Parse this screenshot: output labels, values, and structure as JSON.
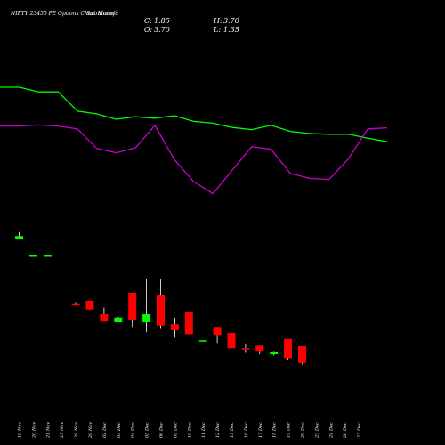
{
  "chart_data": {
    "type": "candlestick",
    "title": "NIFTY 23450 PE Options Chart Munafa",
    "watermark": "Sutra.com",
    "ohlc_summary": {
      "C": "1.85",
      "O": "3.70",
      "H": "3.70",
      "L": "1.35"
    },
    "labels": {
      "C": "C:",
      "O": "O:",
      "H": "H:",
      "L": "L:"
    },
    "colors": {
      "up": "#00ff00",
      "down": "#ff0000",
      "wick": "#ffffff",
      "line_green": "#00ff00",
      "line_magenta": "#cc00cc",
      "background": "#000000"
    },
    "ylim": [
      0,
      28
    ],
    "dates": [
      "19 Nov",
      "20 Nov",
      "21 Nov",
      "27 Nov",
      "28 Nov",
      "29 Nov",
      "02 Dec",
      "03 Dec",
      "04 Dec",
      "05 Dec",
      "06 Dec",
      "09 Dec",
      "10 Dec",
      "11 Dec",
      "12 Dec",
      "13 Dec",
      "16 Dec",
      "17 Dec",
      "18 Dec",
      "19 Dec",
      "20 Dec",
      "23 Dec",
      "24 Dec",
      "26 Dec",
      "27 Dec"
    ],
    "candles": [
      {
        "o": 24.9,
        "h": 25.9,
        "l": 24.9,
        "c": 25.3
      },
      {
        "o": 22.4,
        "h": 22.4,
        "l": 22.4,
        "c": 22.4
      },
      {
        "o": 22.4,
        "h": 22.4,
        "l": 22.4,
        "c": 22.4
      },
      {
        "o": 15.1,
        "h": 15.4,
        "l": 14.9,
        "c": 15.0
      },
      {
        "o": 15.6,
        "h": 15.6,
        "l": 14.3,
        "c": 14.3
      },
      {
        "o": 13.6,
        "h": 14.6,
        "l": 12.5,
        "c": 12.5
      },
      {
        "o": 12.4,
        "h": 13.2,
        "l": 12.4,
        "c": 13.1
      },
      {
        "o": 16.8,
        "h": 16.8,
        "l": 11.7,
        "c": 12.8
      },
      {
        "o": 12.4,
        "h": 18.8,
        "l": 10.9,
        "c": 13.6
      },
      {
        "o": 16.5,
        "h": 18.9,
        "l": 11.4,
        "c": 11.9
      },
      {
        "o": 12.1,
        "h": 13.1,
        "l": 10.1,
        "c": 11.2
      },
      {
        "o": 13.9,
        "h": 13.9,
        "l": 10.6,
        "c": 10.6
      },
      {
        "o": 9.5,
        "h": 9.7,
        "l": 9.5,
        "c": 9.7
      },
      {
        "o": 11.7,
        "h": 11.7,
        "l": 9.3,
        "c": 10.5
      },
      {
        "o": 10.8,
        "h": 10.8,
        "l": 8.5,
        "c": 8.5
      },
      {
        "o": 8.5,
        "h": 9.2,
        "l": 7.8,
        "c": 8.3
      },
      {
        "o": 8.9,
        "h": 8.9,
        "l": 7.6,
        "c": 8.1
      },
      {
        "o": 7.6,
        "h": 8.1,
        "l": 7.4,
        "c": 8.0
      },
      {
        "o": 9.9,
        "h": 9.9,
        "l": 6.8,
        "c": 7.0
      },
      {
        "o": 8.8,
        "h": 8.8,
        "l": 6.1,
        "c": 6.3
      }
    ],
    "candle_slots": [
      0,
      1,
      2,
      4,
      5,
      6,
      7,
      8,
      9,
      10,
      11,
      12,
      13,
      14,
      15,
      16,
      17,
      18,
      19,
      20
    ],
    "line_green": [
      60.5,
      60.5,
      59.2,
      59.2,
      53.8,
      53.0,
      51.5,
      52.2,
      51.8,
      52.5,
      50.9,
      50.4,
      49.2,
      48.6,
      49.8,
      48.1,
      47.5,
      47.3,
      47.3,
      46.2,
      45.2
    ],
    "line_magenta": [
      49.6,
      49.6,
      49.9,
      49.6,
      48.8,
      43.3,
      42.1,
      43.5,
      49.8,
      40.2,
      34.0,
      30.6,
      37.2,
      43.8,
      43.1,
      36.3,
      34.9,
      34.6,
      40.4,
      48.8,
      49.1
    ],
    "line_ylim": [
      20,
      75
    ]
  }
}
